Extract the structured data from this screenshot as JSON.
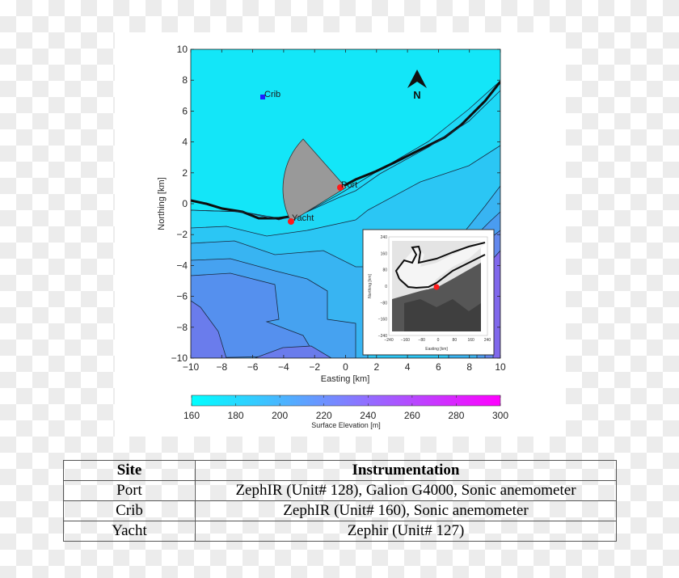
{
  "chart_data": {
    "type": "heatmap",
    "subtype": "filled-contour-map",
    "xlabel": "Easting [km]",
    "ylabel": "Northing [km]",
    "xlim": [
      -10,
      10
    ],
    "ylim": [
      -10,
      10
    ],
    "xticks": [
      -10,
      -8,
      -6,
      -4,
      -2,
      0,
      2,
      4,
      6,
      8,
      10
    ],
    "yticks": [
      -10,
      -8,
      -6,
      -4,
      -2,
      0,
      2,
      4,
      6,
      8,
      10
    ],
    "north_arrow": {
      "label": "N",
      "x": 4.6,
      "y": 7.8
    },
    "sites": [
      {
        "name": "Crib",
        "x": -5.3,
        "y": 6.9,
        "marker": "square",
        "color": "#1f1fff"
      },
      {
        "name": "Port",
        "x": -0.4,
        "y": 1.05,
        "marker": "circle",
        "color": "#ff1a1a"
      },
      {
        "name": "Yacht",
        "x": -3.5,
        "y": -1.2,
        "marker": "circle",
        "color": "#ff1a1a"
      }
    ],
    "sector": {
      "center": [
        -3.5,
        -1.2
      ],
      "description": "grey wind sector from Yacht toward Port, radius ~5.5 km",
      "color": "#999999"
    },
    "colorbar": {
      "label": "Surface Elevation [m]",
      "ticks": [
        160,
        180,
        200,
        220,
        240,
        260,
        280,
        300
      ],
      "range": [
        160,
        300
      ],
      "cmap": [
        "#00ffff",
        "#ff00ff"
      ],
      "orientation": "horizontal"
    },
    "inset": {
      "xlabel": "Easting [km]",
      "ylabel": "Northing [km]",
      "ticks": [
        -240,
        -160,
        -80,
        0,
        80,
        160,
        240
      ],
      "description": "regional greyscale elevation map with lake shoreline and red site marker at origin"
    }
  },
  "table": {
    "headers": [
      "Site",
      "Instrumentation"
    ],
    "rows": [
      [
        "Port",
        "ZephIR (Unit# 128), Galion G4000, Sonic anemometer"
      ],
      [
        "Crib",
        "ZephIR (Unit# 160), Sonic anemometer"
      ],
      [
        "Yacht",
        "Zephir (Unit# 127)"
      ]
    ]
  }
}
